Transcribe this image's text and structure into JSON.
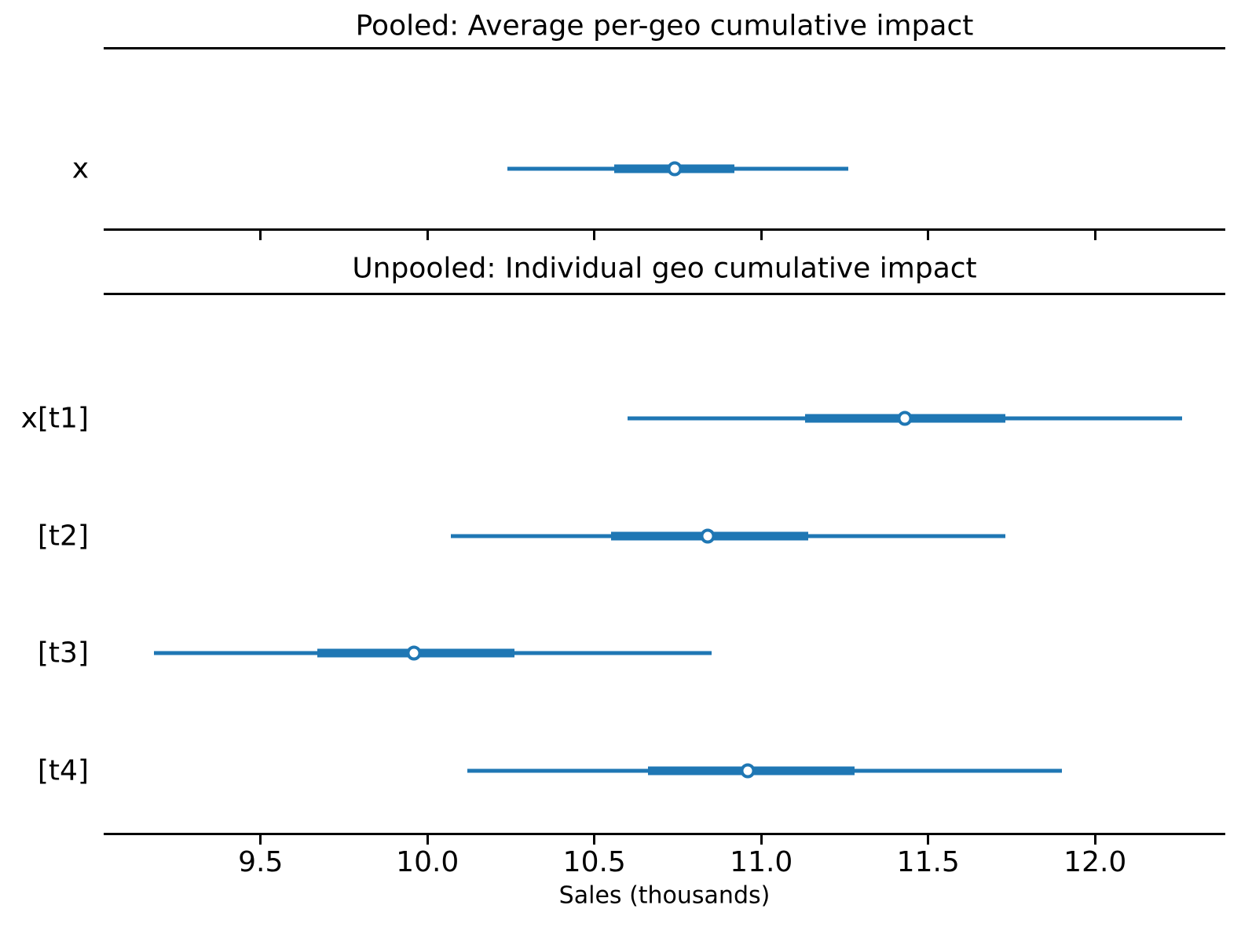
{
  "chart_data": {
    "type": "forest",
    "xlabel": "Sales (thousands)",
    "xlim": [
      9.03,
      12.39
    ],
    "xticks": [
      9.5,
      10.0,
      10.5,
      11.0,
      11.5,
      12.0
    ],
    "xtick_labels": [
      "9.5",
      "10.0",
      "10.5",
      "11.0",
      "11.5",
      "12.0"
    ],
    "grid": false,
    "legend": "none",
    "marker_color": "#1f77b4",
    "spine_color": "#000000",
    "panels": [
      {
        "title": "Pooled: Average per-geo cumulative impact",
        "rows": [
          {
            "label": "x",
            "median": 10.74,
            "interval_thick": [
              10.56,
              10.92
            ],
            "interval_thin": [
              10.24,
              11.26
            ]
          }
        ]
      },
      {
        "title": "Unpooled: Individual geo cumulative impact",
        "rows": [
          {
            "label": "x[t1]",
            "median": 11.43,
            "interval_thick": [
              11.13,
              11.73
            ],
            "interval_thin": [
              10.6,
              12.26
            ]
          },
          {
            "label": "[t2]",
            "median": 10.84,
            "interval_thick": [
              10.55,
              11.14
            ],
            "interval_thin": [
              10.07,
              11.73
            ]
          },
          {
            "label": "[t3]",
            "median": 9.96,
            "interval_thick": [
              9.67,
              10.26
            ],
            "interval_thin": [
              9.18,
              10.85
            ]
          },
          {
            "label": "[t4]",
            "median": 10.96,
            "interval_thick": [
              10.66,
              11.28
            ],
            "interval_thin": [
              10.12,
              11.9
            ]
          }
        ]
      }
    ]
  }
}
